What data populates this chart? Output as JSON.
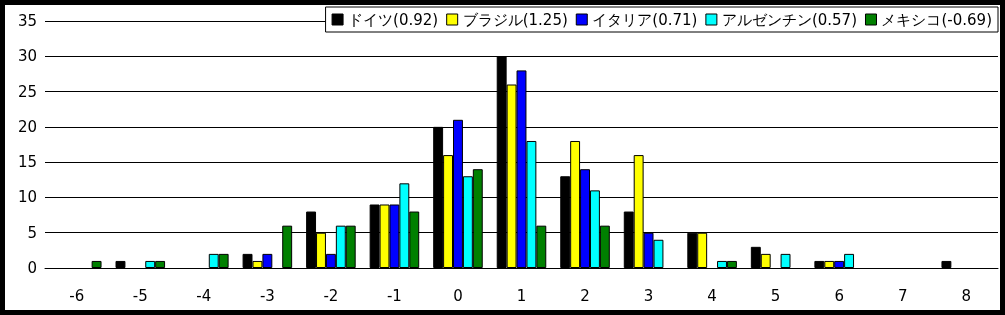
{
  "chart_data": {
    "type": "bar",
    "categories": [
      "-6",
      "-5",
      "-4",
      "-3",
      "-2",
      "-1",
      "0",
      "1",
      "2",
      "3",
      "4",
      "5",
      "6",
      "7",
      "8"
    ],
    "series": [
      {
        "name": "ドイツ(0.92)",
        "color": "#000000",
        "values": [
          0,
          1,
          0,
          2,
          8,
          9,
          20,
          30,
          13,
          8,
          5,
          3,
          1,
          0,
          1
        ]
      },
      {
        "name": "ブラジル(1.25)",
        "color": "#ffff00",
        "values": [
          0,
          0,
          0,
          1,
          5,
          9,
          16,
          26,
          18,
          16,
          5,
          2,
          1,
          0,
          0
        ]
      },
      {
        "name": "イタリア(0.71)",
        "color": "#0000ff",
        "values": [
          0,
          0,
          0,
          2,
          2,
          9,
          21,
          28,
          14,
          5,
          0,
          0,
          1,
          0,
          0
        ]
      },
      {
        "name": "アルゼンチン(0.57)",
        "color": "#00ffff",
        "values": [
          0,
          1,
          2,
          0,
          6,
          12,
          13,
          18,
          11,
          4,
          1,
          2,
          2,
          0,
          0
        ]
      },
      {
        "name": "メキシコ(-0.69)",
        "color": "#008000",
        "values": [
          1,
          1,
          2,
          6,
          6,
          8,
          14,
          6,
          6,
          0,
          1,
          0,
          0,
          0,
          0
        ]
      }
    ],
    "ylim": [
      0,
      35
    ],
    "yticks": [
      0,
      5,
      10,
      15,
      20,
      25,
      30,
      35
    ],
    "grid": "y",
    "legend": "top right"
  }
}
